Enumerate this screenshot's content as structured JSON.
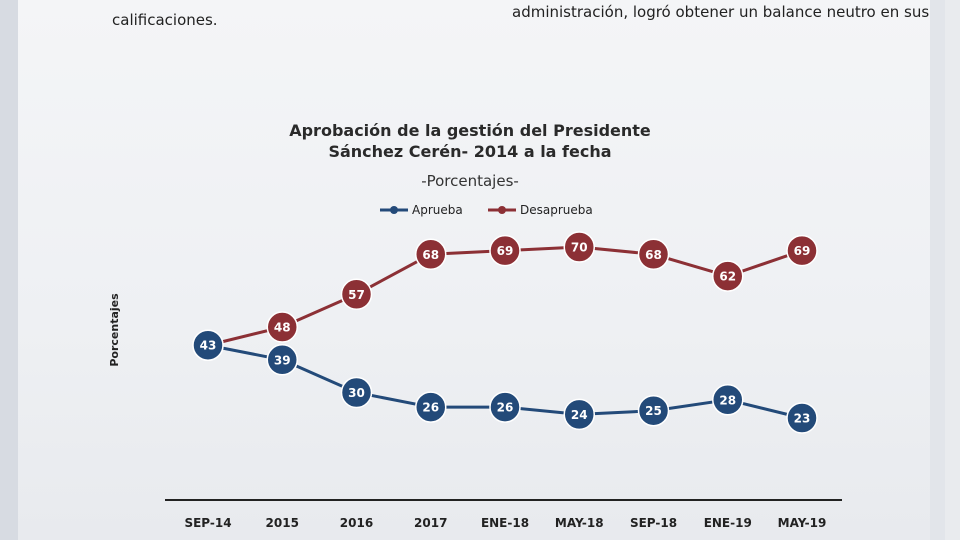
{
  "intro": {
    "line1": "administración, logró obtener un balance neutro en sus",
    "line2": "calificaciones."
  },
  "colors": {
    "aprueba": "#234a79",
    "desaprueba": "#8c3035",
    "axis": "#222222"
  },
  "chart_data": {
    "type": "line",
    "title_line1": "Aprobación de la gestión del Presidente",
    "title_line2": "Sánchez Cerén- 2014 a la fecha",
    "subtitle": "-Porcentajes-",
    "ylabel": "Porcentajes",
    "xlabel": "",
    "ylim": [
      15,
      75
    ],
    "grid": false,
    "legend_position": "top-center",
    "categories": [
      "SEP-14",
      "2015",
      "2016",
      "2017",
      "ENE-18",
      "MAY-18",
      "SEP-18",
      "ENE-19",
      "MAY-19"
    ],
    "series": [
      {
        "name": "Aprueba",
        "color": "#234a79",
        "values": [
          43,
          39,
          30,
          26,
          26,
          24,
          25,
          28,
          23
        ]
      },
      {
        "name": "Desaprueba",
        "color": "#8c3035",
        "values": [
          43,
          48,
          57,
          68,
          69,
          70,
          68,
          62,
          69
        ]
      }
    ]
  }
}
